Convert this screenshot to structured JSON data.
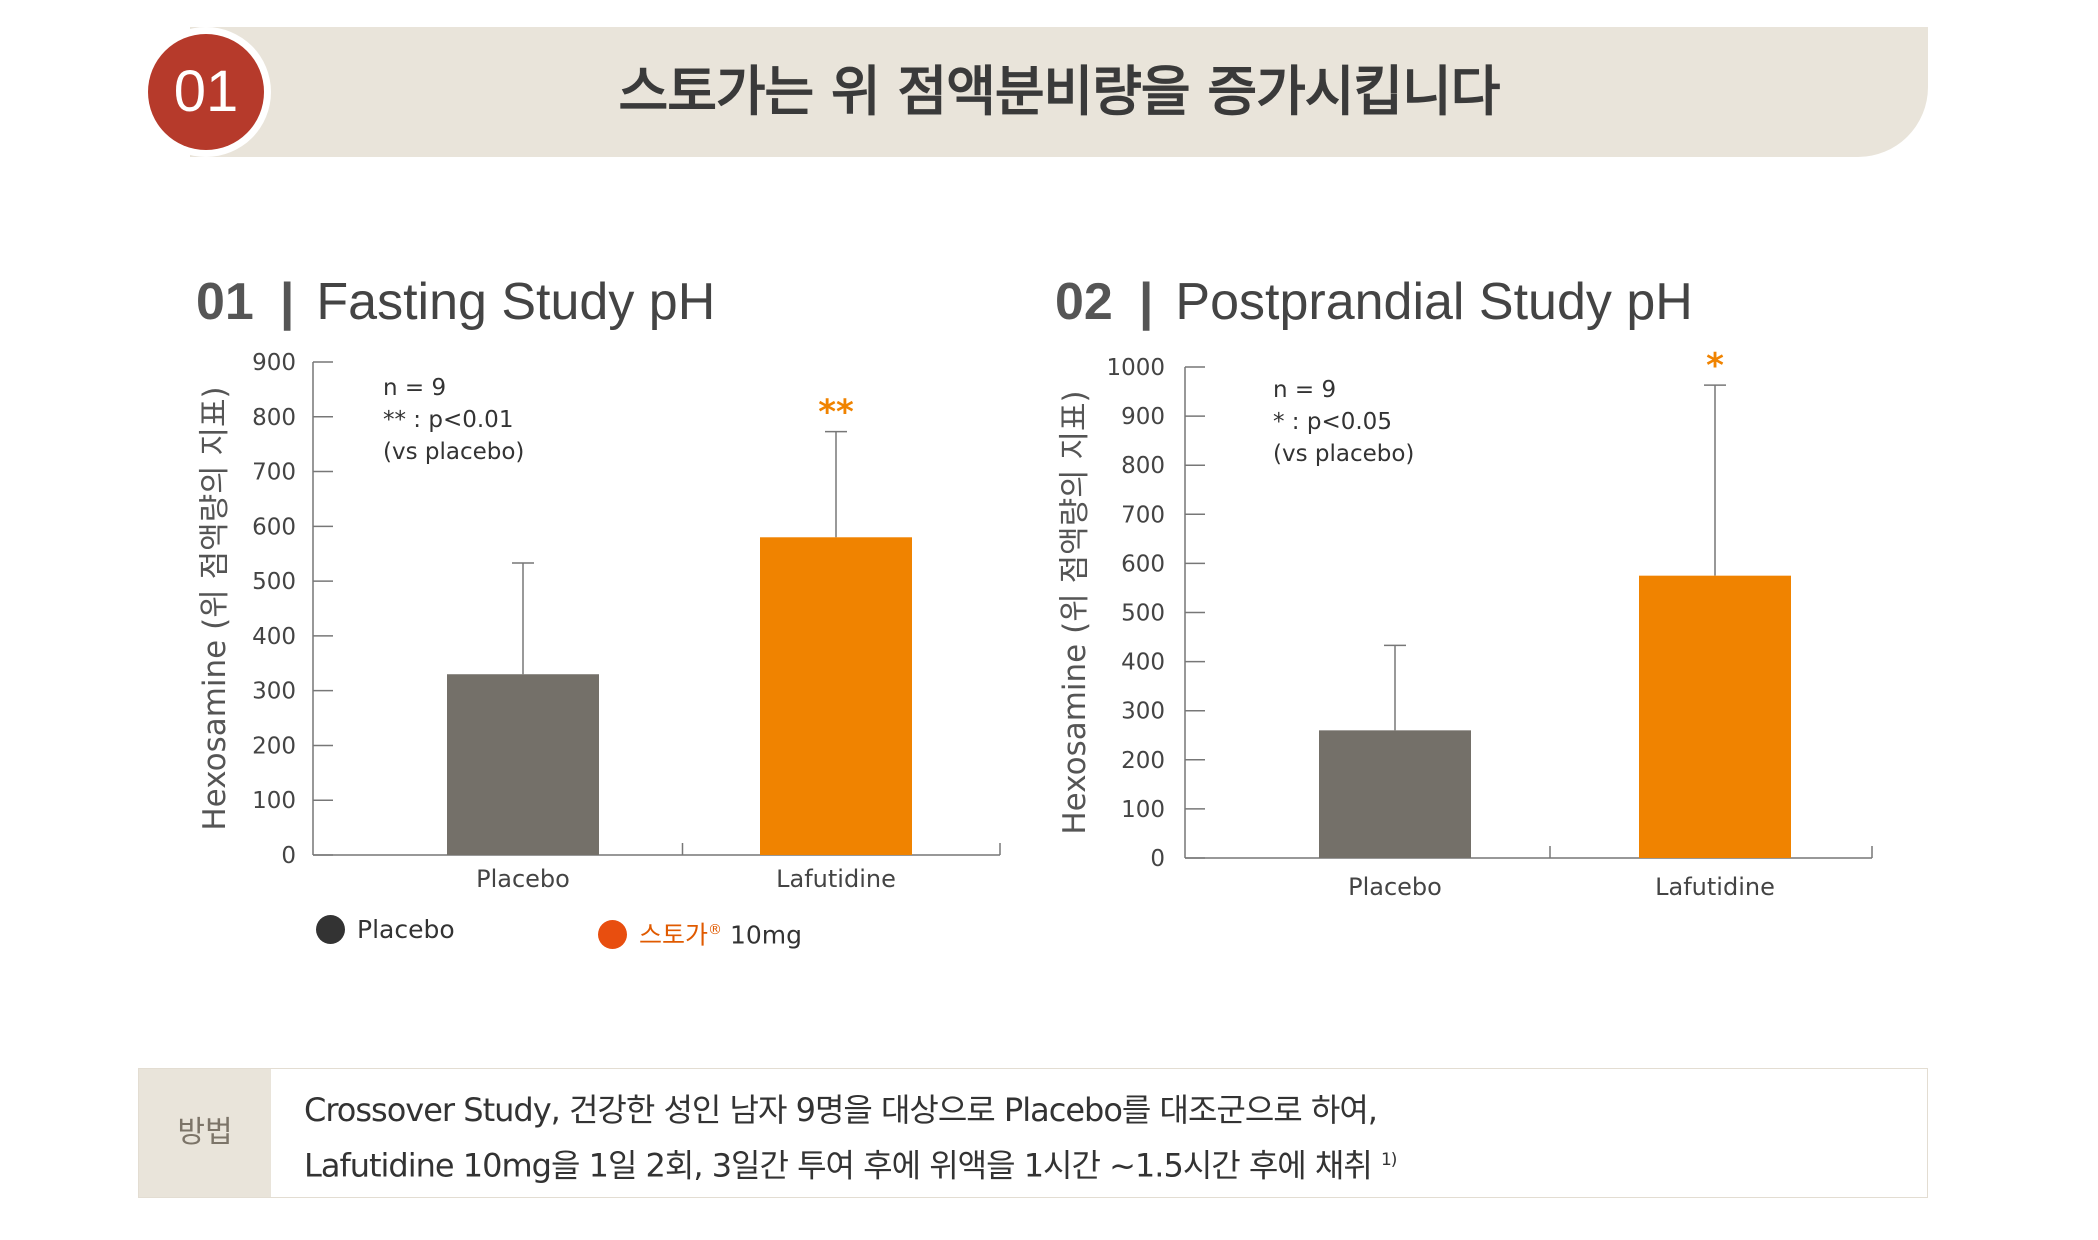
{
  "header": {
    "badge": "01",
    "title": "스토가는 위 점액분비량을 증가시킵니다"
  },
  "colors": {
    "placebo": "#747069",
    "lafutidine": "#f08300",
    "star": "#f08300",
    "badge": "#b63a2b",
    "banner": "#e9e4da"
  },
  "chart_data": [
    {
      "type": "bar",
      "number": "01",
      "title": "Fasting Study pH",
      "ylabel": "Hexosamine (위 점액량의 지표)",
      "categories": [
        "Placebo",
        "Lafutidine"
      ],
      "values": [
        330,
        580
      ],
      "error_upper": [
        533,
        773
      ],
      "significance": [
        "",
        "**"
      ],
      "ylim": [
        0,
        900
      ],
      "yticks": [
        0,
        100,
        200,
        300,
        400,
        500,
        600,
        700,
        800,
        900
      ],
      "annotation": [
        "n = 9",
        "** : p<0.01",
        "(vs placebo)"
      ],
      "grid": false
    },
    {
      "type": "bar",
      "number": "02",
      "title": "Postprandial Study pH",
      "ylabel": "Hexosamine (위 점액량의 지표)",
      "categories": [
        "Placebo",
        "Lafutidine"
      ],
      "values": [
        260,
        575
      ],
      "error_upper": [
        433,
        963
      ],
      "significance": [
        "",
        "*"
      ],
      "ylim": [
        0,
        1000
      ],
      "yticks": [
        0,
        100,
        200,
        300,
        400,
        500,
        600,
        700,
        800,
        900,
        1000
      ],
      "annotation": [
        "n = 9",
        "* : p<0.05",
        "(vs placebo)"
      ],
      "grid": false
    }
  ],
  "legend": {
    "placebo_label": "Placebo",
    "brand_label": "스토가",
    "brand_mark": "®",
    "dose_label": "10mg"
  },
  "method": {
    "label": "방법",
    "line1": "Crossover Study, 건강한 성인 남자 9명을 대상으로 Placebo를 대조군으로 하여,",
    "line2": "Lafutidine 10mg을 1일 2회, 3일간 투여 후에 위액을 1시간 ~1.5시간 후에 채취",
    "footnote": "1)"
  }
}
